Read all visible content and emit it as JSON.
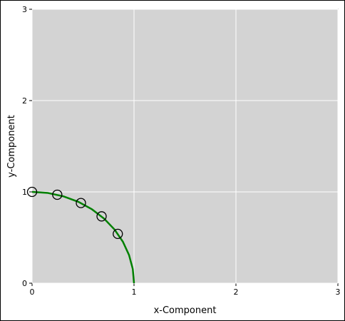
{
  "chart_data": {
    "type": "scatter",
    "x_label": "x-Component",
    "y_label": "y-Component",
    "xlim": [
      0,
      3
    ],
    "ylim": [
      0,
      3
    ],
    "xticks": [
      0,
      1,
      2,
      3
    ],
    "yticks": [
      0,
      1,
      2,
      3
    ],
    "grid": true,
    "background": "#d3d3d3",
    "series": [
      {
        "mode": "lines",
        "color": "#008000",
        "x": [
          0,
          0.156,
          0.309,
          0.454,
          0.588,
          0.707,
          0.809,
          0.891,
          0.951,
          0.988,
          1
        ],
        "values": [
          1,
          0.988,
          0.951,
          0.891,
          0.809,
          0.707,
          0.588,
          0.454,
          0.309,
          0.156,
          0
        ]
      },
      {
        "mode": "markers",
        "color": "#000000",
        "x": [
          0,
          0.247,
          0.479,
          0.682,
          0.841
        ],
        "values": [
          1,
          0.969,
          0.878,
          0.732,
          0.54
        ]
      }
    ]
  }
}
